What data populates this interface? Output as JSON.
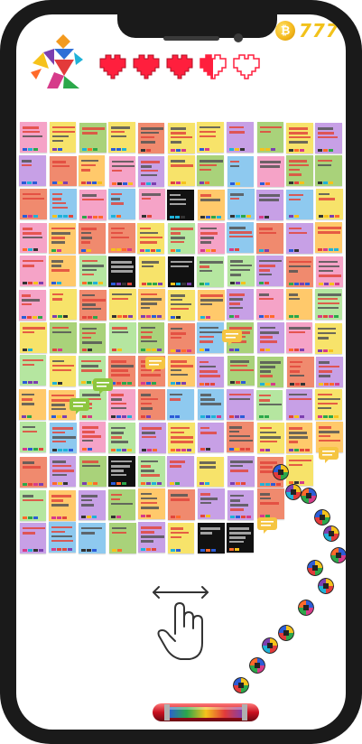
{
  "hud": {
    "coin_symbol": "₿",
    "coin_count": "777",
    "lives_total": 5,
    "lives_full": 3,
    "lives_half": 1
  },
  "colors": {
    "heart_red": "#ff1f3d",
    "coin_gold": "#f2c21b",
    "note_palette": [
      "#f7e36a",
      "#f5a3c7",
      "#a9d27a",
      "#8ec9ef",
      "#c7a0e6",
      "#ffc96b",
      "#f08a6e",
      "#b5e6a0"
    ]
  },
  "board": {
    "rows": 13,
    "cols": 11
  },
  "icons": {
    "logo": "tangram-runner-logo",
    "heart": "pixel-heart-icon",
    "coin": "bitcoin-icon",
    "bubble": "chat-bubble-icon",
    "ball": "pixel-ball-icon",
    "swipe": "swipe-hand-icon",
    "paddle": "capsule-paddle"
  }
}
